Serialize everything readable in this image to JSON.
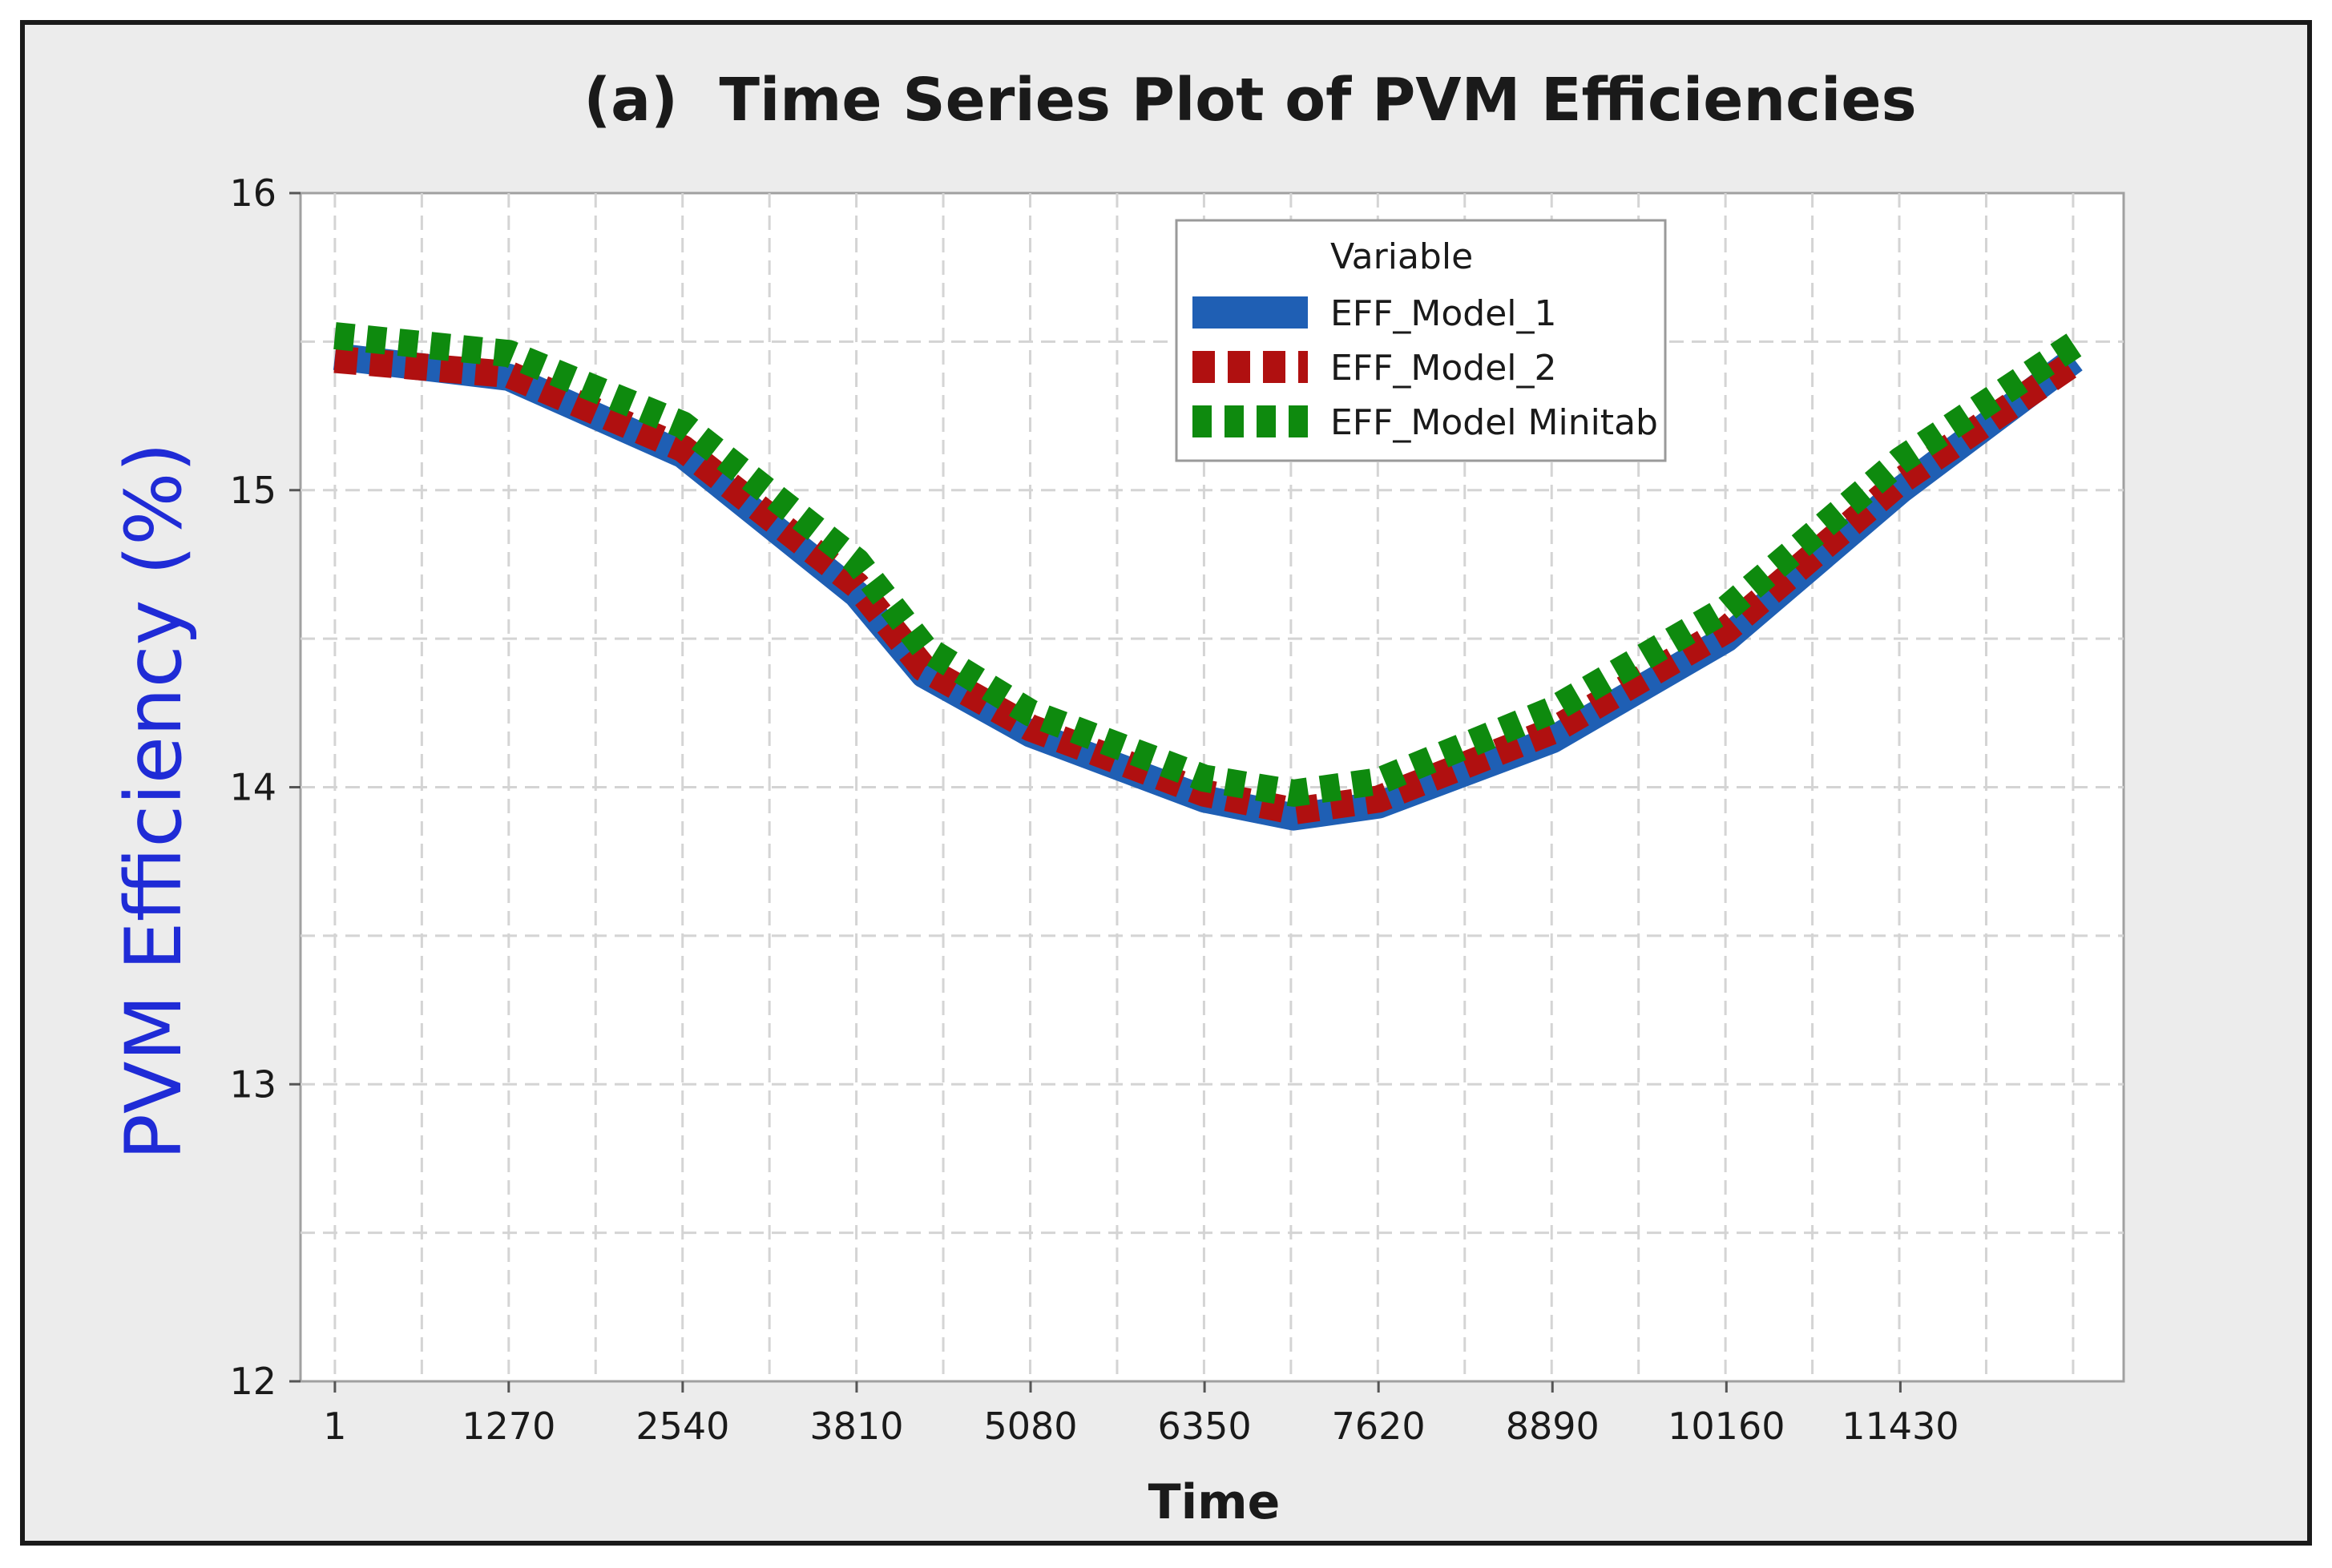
{
  "chart_data": {
    "type": "line",
    "title": "(a)  Time Series Plot of PVM Efficiencies",
    "xlabel": "Time",
    "ylabel": "PVM Efficiency (%)",
    "x_ticks": [
      "1",
      "1270",
      "2540",
      "3810",
      "5080",
      "6350",
      "7620",
      "8890",
      "10160",
      "11430"
    ],
    "x_tick_values": [
      1,
      1270,
      2540,
      3810,
      5080,
      6350,
      7620,
      8890,
      10160,
      11430
    ],
    "xlim": [
      -250,
      13060
    ],
    "y_ticks": [
      "12",
      "13",
      "14",
      "15",
      "16"
    ],
    "y_tick_values": [
      12,
      13,
      14,
      15,
      16
    ],
    "ylim": [
      12,
      16
    ],
    "grid": true,
    "legend": {
      "title": "Variable",
      "position": "top-right"
    },
    "series": [
      {
        "name": "EFF_Model_1",
        "color": "#1f5fb4",
        "style": "solid",
        "x": [
          1,
          1270,
          2540,
          3810,
          4300,
          5080,
          6350,
          7000,
          7620,
          8890,
          10160,
          11430,
          12700
        ],
        "y": [
          15.45,
          15.38,
          15.12,
          14.65,
          14.38,
          14.18,
          13.96,
          13.9,
          13.94,
          14.16,
          14.5,
          15.0,
          15.44
        ]
      },
      {
        "name": "EFF_Model_2",
        "color": "#b01010",
        "style": "dashed",
        "x": [
          1,
          1270,
          2540,
          3810,
          4300,
          5080,
          6350,
          7000,
          7620,
          8890,
          10160,
          11430,
          12700
        ],
        "y": [
          15.44,
          15.39,
          15.14,
          14.68,
          14.4,
          14.2,
          13.98,
          13.92,
          13.96,
          14.19,
          14.53,
          15.03,
          15.43
        ]
      },
      {
        "name": "EFF_Model Minitab",
        "color": "#0e8a0e",
        "style": "dashed",
        "x": [
          1,
          1270,
          2540,
          3810,
          4300,
          5080,
          6350,
          7000,
          7620,
          8890,
          10160,
          11430,
          12700
        ],
        "y": [
          15.52,
          15.46,
          15.22,
          14.76,
          14.47,
          14.25,
          14.03,
          13.98,
          14.02,
          14.26,
          14.6,
          15.1,
          15.49
        ]
      }
    ]
  }
}
